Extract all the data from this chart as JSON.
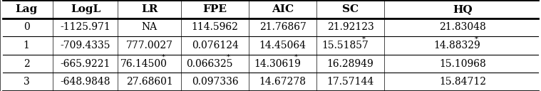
{
  "headers": [
    "Lag",
    "LogL",
    "LR",
    "FPE",
    "AIC",
    "SC",
    "HQ"
  ],
  "rows": [
    [
      "0",
      "-1125.971",
      "NA",
      "114.5962",
      "21.76867",
      "21.92123",
      "21.83048"
    ],
    [
      "1",
      "-709.4335",
      "777.0027",
      "0.076124",
      "14.45064",
      "15.51857*",
      "14.88329*"
    ],
    [
      "2",
      "-665.9221",
      "76.14500*",
      "0.066325*",
      "14.30619*",
      "16.28949",
      "15.10968"
    ],
    [
      "3",
      "-648.9848",
      "27.68601",
      "0.097336",
      "14.67278",
      "17.57144",
      "15.84712"
    ]
  ],
  "col_bounds": [
    0.0,
    0.098,
    0.218,
    0.335,
    0.46,
    0.585,
    0.71,
    1.0
  ],
  "row_bounds": [
    1.0,
    0.74,
    0.535,
    0.295,
    0.055
  ],
  "h_line_widths": [
    2.0,
    2.0,
    0.8,
    0.8,
    2.0
  ],
  "figsize": [
    7.59,
    1.28
  ],
  "dpi": 100,
  "background_color": "#ffffff",
  "header_fontsize": 11,
  "cell_fontsize": 10,
  "star_fontsize": 7,
  "font_family": "serif"
}
